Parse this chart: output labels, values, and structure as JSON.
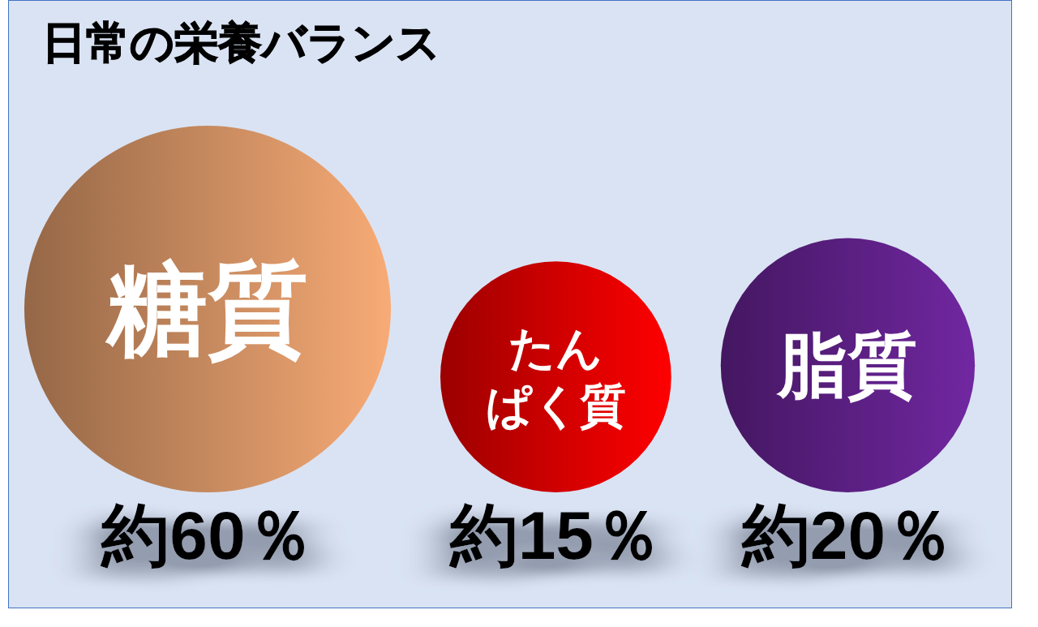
{
  "chart_data": {
    "type": "other",
    "title": "日常の栄養バランス",
    "categories": [
      "糖質",
      "たんぱく質",
      "脂質"
    ],
    "values": [
      60,
      15,
      20
    ],
    "value_labels": [
      "約60％",
      "約15％",
      "約20％"
    ],
    "colors": [
      "#c6895e",
      "#cf0000",
      "#5a1f81"
    ]
  }
}
